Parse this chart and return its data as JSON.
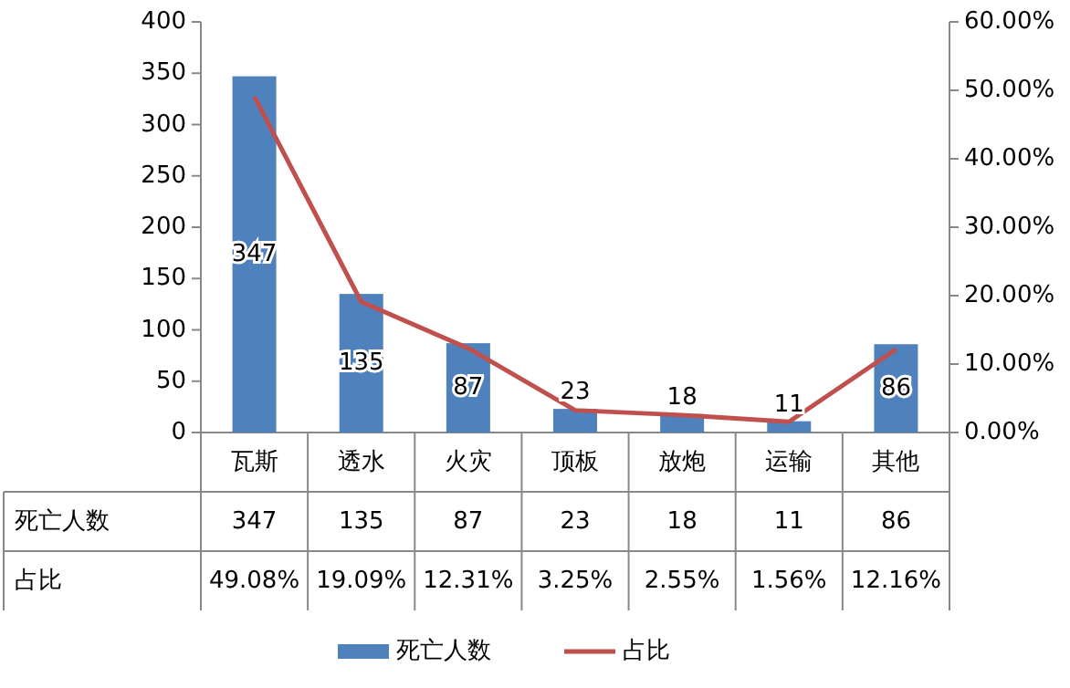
{
  "chart_data": {
    "type": "bar",
    "categories": [
      "瓦斯",
      "透水",
      "火灾",
      "顶板",
      "放炮",
      "运输",
      "其他"
    ],
    "series": [
      {
        "name": "死亡人数",
        "color": "#4f81bd",
        "values": [
          347,
          135,
          87,
          23,
          18,
          11,
          86
        ]
      },
      {
        "name": "占比",
        "type": "line",
        "axis": "y2",
        "color": "#c0504d",
        "values": [
          49.08,
          19.09,
          12.31,
          3.25,
          2.55,
          1.56,
          12.16
        ],
        "value_labels": [
          "49.08%",
          "19.09%",
          "12.31%",
          "3.25%",
          "2.55%",
          "1.56%",
          "12.16%"
        ]
      }
    ],
    "ylim": [
      0,
      400
    ],
    "yticks": [
      0,
      50,
      100,
      150,
      200,
      250,
      300,
      350,
      400
    ],
    "y2lim": [
      0,
      60
    ],
    "y2ticks": [
      {
        "value": 0,
        "label": "0.00%"
      },
      {
        "value": 10,
        "label": "10.00%"
      },
      {
        "value": 20,
        "label": "20.00%"
      },
      {
        "value": 30,
        "label": "30.00%"
      },
      {
        "value": 40,
        "label": "40.00%"
      },
      {
        "value": 50,
        "label": "50.00%"
      },
      {
        "value": 60,
        "label": "60.00%"
      }
    ],
    "annotations": [
      "347",
      "135",
      "87",
      "23",
      "18",
      "11",
      "86"
    ],
    "data_labels": true,
    "legend": "bottom",
    "grid": false
  }
}
